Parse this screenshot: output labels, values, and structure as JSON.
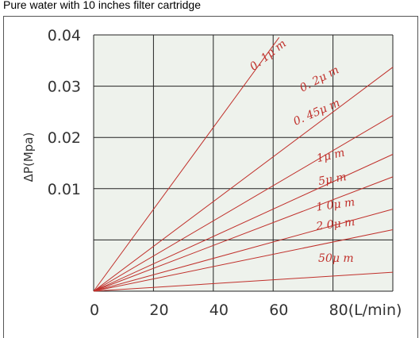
{
  "colors": {
    "page_bg": "#ffffff",
    "plot_bg": "#eef2ec",
    "grid": "#222222",
    "series": "#c0302b",
    "frame": "#555555"
  },
  "chart_data": {
    "type": "line",
    "title": "Pure water with 10 inches filter cartridge",
    "ylabel": "ΔP(Mpa)",
    "xlabel": "",
    "xlim": [
      0,
      100
    ],
    "ylim": [
      -0.01,
      0.04
    ],
    "x_ticks": [
      0,
      20,
      40,
      60,
      80
    ],
    "x_tick_labels": [
      "0",
      "20",
      "40",
      "60",
      "80(L/min)"
    ],
    "y_ticks": [
      0.01,
      0.02,
      0.03,
      0.04
    ],
    "y_tick_labels": [
      "0.01",
      "0.02",
      "0.03",
      "0.04"
    ],
    "grid_x": [
      0,
      20,
      40,
      60,
      80,
      100
    ],
    "grid_y": [
      -0.01,
      0,
      0.01,
      0.02,
      0.03,
      0.04
    ],
    "grid": true,
    "series": [
      {
        "name": "0.1μm",
        "x": [
          0,
          62
        ],
        "y": [
          -0.01,
          0.0395
        ]
      },
      {
        "name": "0.2μm",
        "x": [
          0,
          100
        ],
        "y": [
          -0.01,
          0.0337
        ]
      },
      {
        "name": "0.45μm",
        "x": [
          0,
          100
        ],
        "y": [
          -0.01,
          0.0243
        ]
      },
      {
        "name": "1μm",
        "x": [
          0,
          100
        ],
        "y": [
          -0.01,
          0.0167
        ]
      },
      {
        "name": "5μm",
        "x": [
          0,
          100
        ],
        "y": [
          -0.01,
          0.0123
        ]
      },
      {
        "name": "10μm",
        "x": [
          0,
          100
        ],
        "y": [
          -0.01,
          0.006
        ]
      },
      {
        "name": "20μm",
        "x": [
          0,
          100
        ],
        "y": [
          -0.01,
          0.002
        ]
      },
      {
        "name": "50μm",
        "x": [
          0,
          100
        ],
        "y": [
          -0.01,
          -0.0063
        ]
      }
    ],
    "labels": [
      {
        "text": "0. 1μ m",
        "x": 59,
        "y": 0.0355,
        "rotate": -38
      },
      {
        "text": "0. 2μ m",
        "x": 76,
        "y": 0.0308,
        "rotate": -28
      },
      {
        "text": "0. 45μ m",
        "x": 75,
        "y": 0.0243,
        "rotate": -24
      },
      {
        "text": "1μ m",
        "x": 79.5,
        "y": 0.0158,
        "rotate": -13
      },
      {
        "text": "5μ m",
        "x": 80,
        "y": 0.0112,
        "rotate": -10
      },
      {
        "text": "1 0μ m",
        "x": 81,
        "y": 0.0062,
        "rotate": -8
      },
      {
        "text": "2 0μ m",
        "x": 81,
        "y": 0.0024,
        "rotate": -7
      },
      {
        "text": "50μ m",
        "x": 81,
        "y": -0.0043,
        "rotate": 0
      }
    ]
  }
}
